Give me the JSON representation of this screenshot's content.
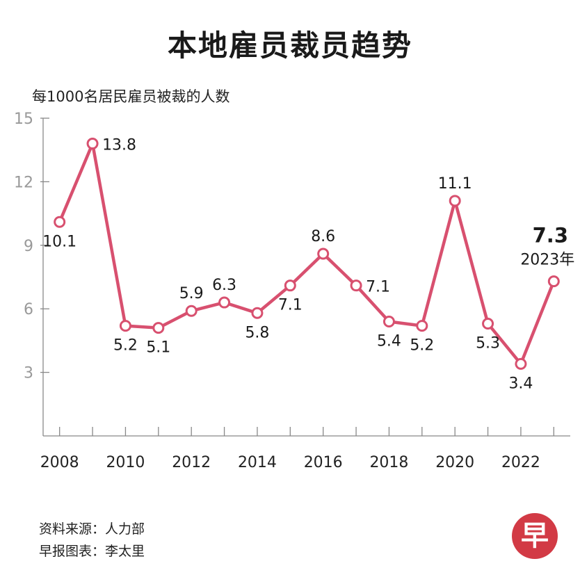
{
  "title": "本地雇员裁员趋势",
  "chart_data": {
    "type": "line",
    "title": "本地雇员裁员趋势",
    "ylabel": "每1000名居民雇员被裁的人数",
    "xlabel": "",
    "x": [
      2008,
      2009,
      2010,
      2011,
      2012,
      2013,
      2014,
      2015,
      2016,
      2017,
      2018,
      2019,
      2020,
      2021,
      2022,
      2023
    ],
    "values": [
      10.1,
      13.8,
      5.2,
      5.1,
      5.9,
      6.3,
      5.8,
      7.1,
      8.6,
      7.1,
      5.4,
      5.2,
      11.1,
      5.3,
      3.4,
      7.3
    ],
    "data_labels": [
      "10.1",
      "13.8",
      "5.2",
      "5.1",
      "5.9",
      "6.3",
      "5.8",
      "7.1",
      "8.6",
      "7.1",
      "5.4",
      "5.2",
      "11.1",
      "5.3",
      "3.4",
      "7.3"
    ],
    "label_positions": [
      "below",
      "right",
      "below",
      "below",
      "above",
      "above",
      "below",
      "below",
      "above",
      "right",
      "below",
      "below",
      "above",
      "below",
      "below",
      "above"
    ],
    "x_tick_labels": [
      "2008",
      "2010",
      "2012",
      "2014",
      "2016",
      "2018",
      "2020",
      "2022"
    ],
    "y_ticks": [
      3,
      6,
      9,
      12,
      15
    ],
    "ylim": [
      0,
      15
    ],
    "xlim": [
      2007.5,
      2023.5
    ],
    "highlight": {
      "value": "7.3",
      "label": "2023年"
    },
    "line_color": "#d8506f",
    "axis_color": "#888888"
  },
  "source": {
    "line1": "资料来源：人力部",
    "line2": "早报图表：李太里"
  },
  "logo_text": "早"
}
